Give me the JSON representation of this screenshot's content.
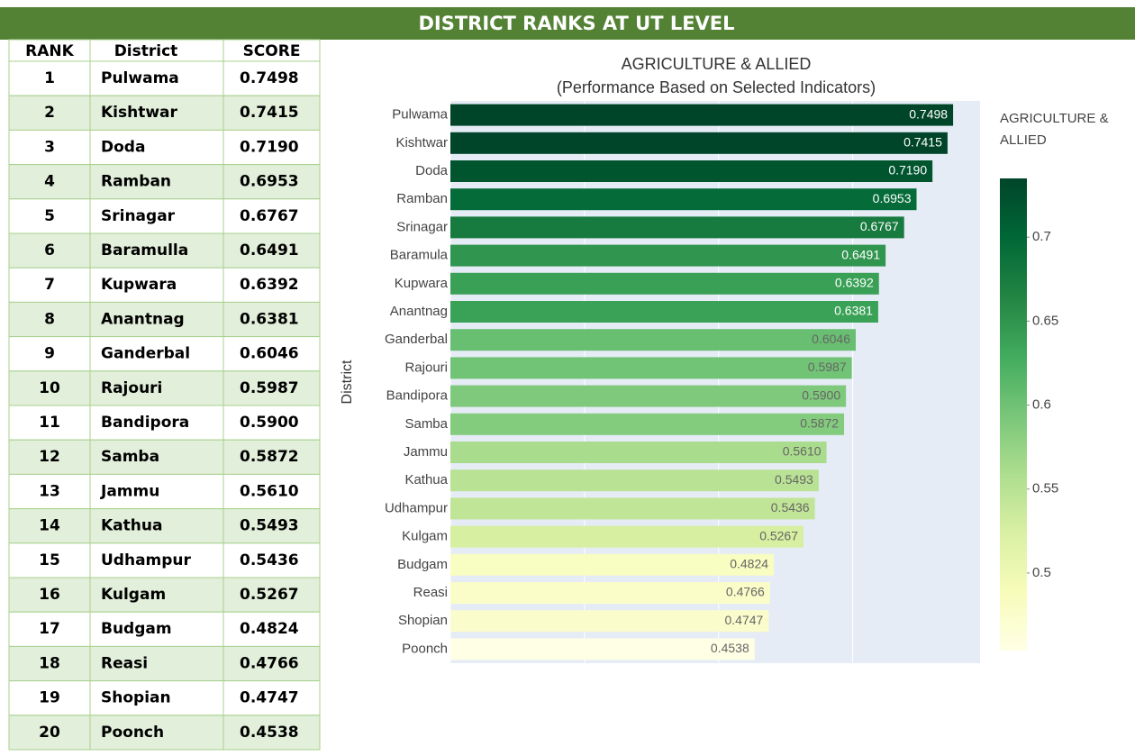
{
  "header": {
    "title": "DISTRICT RANKS AT UT LEVEL"
  },
  "table": {
    "columns": [
      "RANK",
      "District",
      "SCORE"
    ],
    "rows": [
      [
        "1",
        "Pulwama",
        "0.7498"
      ],
      [
        "2",
        "Kishtwar",
        "0.7415"
      ],
      [
        "3",
        "Doda",
        "0.7190"
      ],
      [
        "4",
        "Ramban",
        "0.6953"
      ],
      [
        "5",
        "Srinagar",
        "0.6767"
      ],
      [
        "6",
        "Baramulla",
        "0.6491"
      ],
      [
        "7",
        "Kupwara",
        "0.6392"
      ],
      [
        "8",
        "Anantnag",
        "0.6381"
      ],
      [
        "9",
        "Ganderbal",
        "0.6046"
      ],
      [
        "10",
        "Rajouri",
        "0.5987"
      ],
      [
        "11",
        "Bandipora",
        "0.5900"
      ],
      [
        "12",
        "Samba",
        "0.5872"
      ],
      [
        "13",
        "Jammu",
        "0.5610"
      ],
      [
        "14",
        "Kathua",
        "0.5493"
      ],
      [
        "15",
        "Udhampur",
        "0.5436"
      ],
      [
        "16",
        "Kulgam",
        "0.5267"
      ],
      [
        "17",
        "Budgam",
        "0.4824"
      ],
      [
        "18",
        "Reasi",
        "0.4766"
      ],
      [
        "19",
        "Shopian",
        "0.4747"
      ],
      [
        "20",
        "Poonch",
        "0.4538"
      ]
    ]
  },
  "chart_data": {
    "type": "bar",
    "orientation": "horizontal",
    "title": "AGRICULTURE & ALLIED",
    "subtitle": "(Performance Based on Selected Indicators)",
    "y_label": "District",
    "categories": [
      "Pulwama",
      "Kishtwar",
      "Doda",
      "Ramban",
      "Srinagar",
      "Baramula",
      "Kupwara",
      "Anantnag",
      "Ganderbal",
      "Rajouri",
      "Bandipora",
      "Samba",
      "Jammu",
      "Kathua",
      "Udhampur",
      "Kulgam",
      "Budgam",
      "Reasi",
      "Shopian",
      "Poonch"
    ],
    "values": [
      0.7498,
      0.7415,
      0.719,
      0.6953,
      0.6767,
      0.6491,
      0.6392,
      0.6381,
      0.6046,
      0.5987,
      0.59,
      0.5872,
      0.561,
      0.5493,
      0.5436,
      0.5267,
      0.4824,
      0.4766,
      0.4747,
      0.4538
    ],
    "value_labels": [
      "0.7498",
      "0.7415",
      "0.7190",
      "0.6953",
      "0.6767",
      "0.6491",
      "0.6392",
      "0.6381",
      "0.6046",
      "0.5987",
      "0.5900",
      "0.5872",
      "0.5610",
      "0.5493",
      "0.5436",
      "0.5267",
      "0.4824",
      "0.4766",
      "0.4747",
      "0.4538"
    ],
    "xlim": [
      0,
      0.79
    ],
    "xticks": [
      0,
      0.2,
      0.4,
      0.6
    ],
    "grid": true,
    "colorscale": "YlGn",
    "colorbar": {
      "title": "AGRICULTURE & ALLIED",
      "clim": [
        0.4538,
        0.735
      ],
      "ticks": [
        0.5,
        0.55,
        0.6,
        0.65,
        0.7
      ]
    }
  }
}
